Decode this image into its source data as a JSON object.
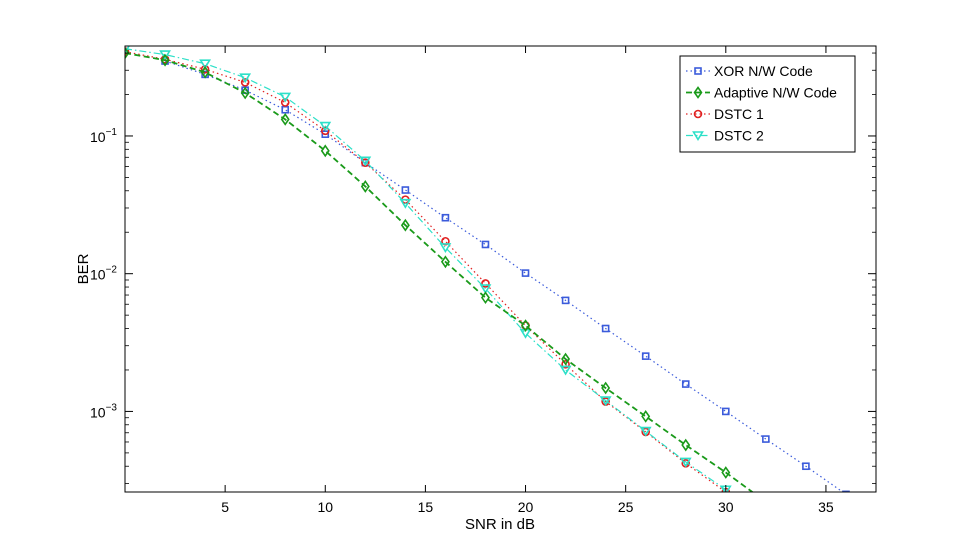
{
  "chart_data": {
    "type": "line",
    "xlabel": "SNR in dB",
    "ylabel": "BER",
    "xlim": [
      0,
      37.5
    ],
    "ylim": [
      0.00026,
      0.45
    ],
    "yscale": "log",
    "x_ticks": [
      5,
      10,
      15,
      20,
      25,
      30,
      35
    ],
    "y_ticks": [
      {
        "value": 0.1,
        "mantissa": "10",
        "exponent": "−1"
      },
      {
        "value": 0.01,
        "mantissa": "10",
        "exponent": "−2"
      },
      {
        "value": 0.001,
        "mantissa": "10",
        "exponent": "−3"
      }
    ],
    "grid": false,
    "legend_position": "top-right",
    "series": [
      {
        "name": "XOR N/W Code",
        "color": "#3b5bdb",
        "line_style": "dotted",
        "marker": "square",
        "x": [
          2,
          4,
          6,
          8,
          10,
          12,
          14,
          16,
          18,
          20,
          22,
          24,
          26,
          28,
          30,
          32,
          34,
          36
        ],
        "y": [
          0.35,
          0.28,
          0.215,
          0.155,
          0.103,
          0.064,
          0.0405,
          0.0255,
          0.0163,
          0.0101,
          0.0064,
          0.004,
          0.00252,
          0.00158,
          0.001,
          0.00063,
          0.0004,
          0.00025
        ]
      },
      {
        "name": "Adaptive N/W Code",
        "color": "#1a9a1a",
        "line_style": "dashed",
        "marker": "diamond",
        "x": [
          0,
          2,
          4,
          6,
          8,
          10,
          12,
          14,
          16,
          18,
          20,
          22,
          24,
          26,
          28,
          30,
          32
        ],
        "y": [
          0.4,
          0.355,
          0.29,
          0.205,
          0.132,
          0.078,
          0.043,
          0.0225,
          0.0122,
          0.0067,
          0.0042,
          0.0024,
          0.00148,
          0.00092,
          0.00057,
          0.00036,
          0.00022
        ]
      },
      {
        "name": "DSTC 1",
        "color": "#e02020",
        "line_style": "dotted",
        "marker": "circle",
        "x": [
          0,
          2,
          4,
          6,
          8,
          10,
          12,
          14,
          16,
          18,
          20,
          22,
          24,
          26,
          28,
          30
        ],
        "y": [
          0.41,
          0.36,
          0.305,
          0.245,
          0.175,
          0.109,
          0.064,
          0.0345,
          0.0172,
          0.0085,
          0.0042,
          0.0022,
          0.00118,
          0.00071,
          0.00042,
          0.00026
        ]
      },
      {
        "name": "DSTC 2",
        "color": "#2de0c8",
        "line_style": "dashdot",
        "marker": "triangle-down",
        "x": [
          0,
          2,
          4,
          6,
          8,
          10,
          12,
          14,
          16,
          18,
          20,
          22,
          24,
          26,
          28,
          30
        ],
        "y": [
          0.43,
          0.39,
          0.335,
          0.265,
          0.192,
          0.118,
          0.066,
          0.0325,
          0.0155,
          0.0078,
          0.0037,
          0.002,
          0.0012,
          0.00072,
          0.00043,
          0.00027
        ]
      }
    ]
  }
}
